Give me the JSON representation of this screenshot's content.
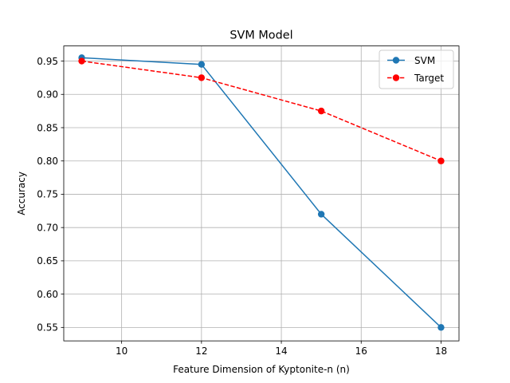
{
  "chart_data": {
    "type": "line",
    "title": "SVM Model",
    "xlabel": "Feature Dimension of Kyptonite-n (n)",
    "ylabel": "Accuracy",
    "xlim": [
      8.55,
      18.45
    ],
    "ylim": [
      0.5298,
      0.9727
    ],
    "xticks": [
      10,
      12,
      14,
      16,
      18
    ],
    "xtick_labels": [
      "10",
      "12",
      "14",
      "16",
      "18"
    ],
    "yticks": [
      0.55,
      0.6,
      0.65,
      0.7,
      0.75,
      0.8,
      0.85,
      0.9,
      0.95
    ],
    "ytick_labels": [
      "0.55",
      "0.60",
      "0.65",
      "0.70",
      "0.75",
      "0.80",
      "0.85",
      "0.90",
      "0.95"
    ],
    "grid": true,
    "legend_position": "upper right",
    "x": [
      9,
      12,
      15,
      18
    ],
    "series": [
      {
        "name": "SVM",
        "values": [
          0.955,
          0.945,
          0.72,
          0.55
        ],
        "color": "#1f77b4",
        "linestyle": "solid",
        "marker": "circle"
      },
      {
        "name": "Target",
        "values": [
          0.95,
          0.925,
          0.875,
          0.8
        ],
        "color": "#ff0000",
        "linestyle": "dashed",
        "marker": "circle"
      }
    ]
  }
}
